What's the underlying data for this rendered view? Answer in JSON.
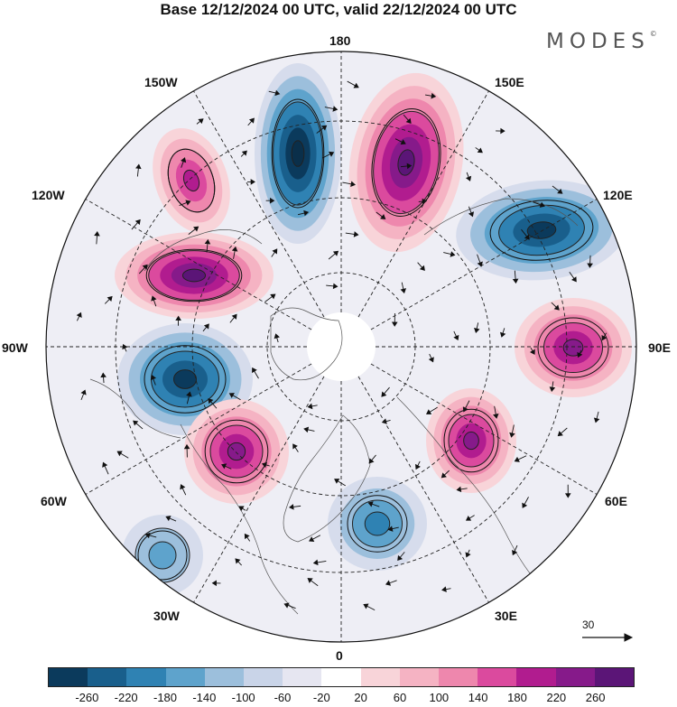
{
  "title": "Base 12/12/2024 00 UTC, valid 22/12/2024 00 UTC",
  "brand": "MODES",
  "brand_mark": "©",
  "longitude_labels": {
    "l180": "180",
    "l150e": "150E",
    "l120e": "120E",
    "l90e": "90E",
    "l60e": "60E",
    "l30e": "30E",
    "l0": "0",
    "l30w": "30W",
    "l60w": "60W",
    "l90w": "90W",
    "l120w": "120W",
    "l150w": "150W"
  },
  "reference_vector": "30",
  "colorbar": {
    "labels": [
      "-260",
      "-220",
      "-180",
      "-140",
      "-100",
      "-60",
      "-20",
      "20",
      "60",
      "100",
      "140",
      "180",
      "220",
      "260"
    ],
    "colors": [
      "#0b3a5c",
      "#195f8c",
      "#2f82b3",
      "#5ea3cc",
      "#9cbfdc",
      "#c9d4e8",
      "#e6e6f1",
      "#ffffff",
      "#f8d4d9",
      "#f5b3c3",
      "#ee87ad",
      "#db4a9e",
      "#b11c8f",
      "#861a8a",
      "#5b1577"
    ]
  },
  "anomaly_centers": [
    {
      "sign": "positive",
      "strength": 0.7,
      "location": "150W 55N"
    },
    {
      "sign": "negative",
      "strength": 1.0,
      "location": "170W 55N"
    },
    {
      "sign": "positive",
      "strength": 1.0,
      "location": "165E 55N"
    },
    {
      "sign": "negative",
      "strength": 0.9,
      "location": "125E 45N"
    },
    {
      "sign": "positive",
      "strength": 1.0,
      "location": "120W 50N"
    },
    {
      "sign": "negative",
      "strength": 0.9,
      "location": "80W 50N"
    },
    {
      "sign": "positive",
      "strength": 0.85,
      "location": "90E 45N"
    },
    {
      "sign": "positive",
      "strength": 0.9,
      "location": "50W 55N"
    },
    {
      "sign": "positive",
      "strength": 0.85,
      "location": "50E 65N"
    },
    {
      "sign": "negative",
      "strength": 0.6,
      "location": "20E 55N"
    },
    {
      "sign": "negative",
      "strength": 0.45,
      "location": "45W 30N"
    }
  ]
}
